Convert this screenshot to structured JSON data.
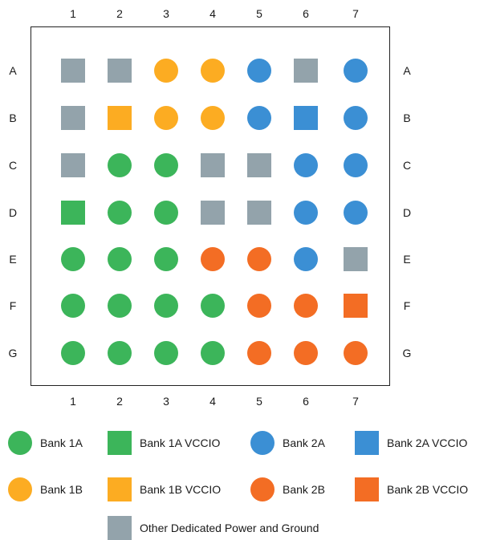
{
  "diagram": {
    "columns": [
      "1",
      "2",
      "3",
      "4",
      "5",
      "6",
      "7"
    ],
    "rows": [
      "A",
      "B",
      "C",
      "D",
      "E",
      "F",
      "G"
    ],
    "pin_types": {
      "b1a": {
        "shape": "circle",
        "color": "#3cb55a"
      },
      "b1av": {
        "shape": "square",
        "color": "#3cb55a"
      },
      "b1b": {
        "shape": "circle",
        "color": "#fcac22"
      },
      "b1bv": {
        "shape": "square",
        "color": "#fcac22"
      },
      "b2a": {
        "shape": "circle",
        "color": "#3b8fd4"
      },
      "b2av": {
        "shape": "square",
        "color": "#3b8fd4"
      },
      "b2b": {
        "shape": "circle",
        "color": "#f36d24"
      },
      "b2bv": {
        "shape": "square",
        "color": "#f36d24"
      },
      "other": {
        "shape": "square",
        "color": "#93a3ab"
      }
    },
    "grid": [
      [
        "other",
        "other",
        "b1b",
        "b1b",
        "b2a",
        "other",
        "b2a"
      ],
      [
        "other",
        "b1bv",
        "b1b",
        "b1b",
        "b2a",
        "b2av",
        "b2a"
      ],
      [
        "other",
        "b1a",
        "b1a",
        "other",
        "other",
        "b2a",
        "b2a"
      ],
      [
        "b1av",
        "b1a",
        "b1a",
        "other",
        "other",
        "b2a",
        "b2a"
      ],
      [
        "b1a",
        "b1a",
        "b1a",
        "b2b",
        "b2b",
        "b2a",
        "other"
      ],
      [
        "b1a",
        "b1a",
        "b1a",
        "b1a",
        "b2b",
        "b2b",
        "b2bv"
      ],
      [
        "b1a",
        "b1a",
        "b1a",
        "b1a",
        "b2b",
        "b2b",
        "b2b"
      ]
    ]
  },
  "legend": {
    "items": [
      {
        "key": "b1a",
        "label": "Bank 1A"
      },
      {
        "key": "b1av",
        "label": "Bank 1A VCCIO"
      },
      {
        "key": "b2a",
        "label": "Bank 2A"
      },
      {
        "key": "b2av",
        "label": "Bank 2A VCCIO"
      },
      {
        "key": "b1b",
        "label": "Bank 1B"
      },
      {
        "key": "b1bv",
        "label": "Bank 1B VCCIO"
      },
      {
        "key": "b2b",
        "label": "Bank 2B"
      },
      {
        "key": "b2bv",
        "label": "Bank 2B VCCIO"
      },
      {
        "key": "other",
        "label": "Other Dedicated Power and Ground"
      }
    ]
  }
}
